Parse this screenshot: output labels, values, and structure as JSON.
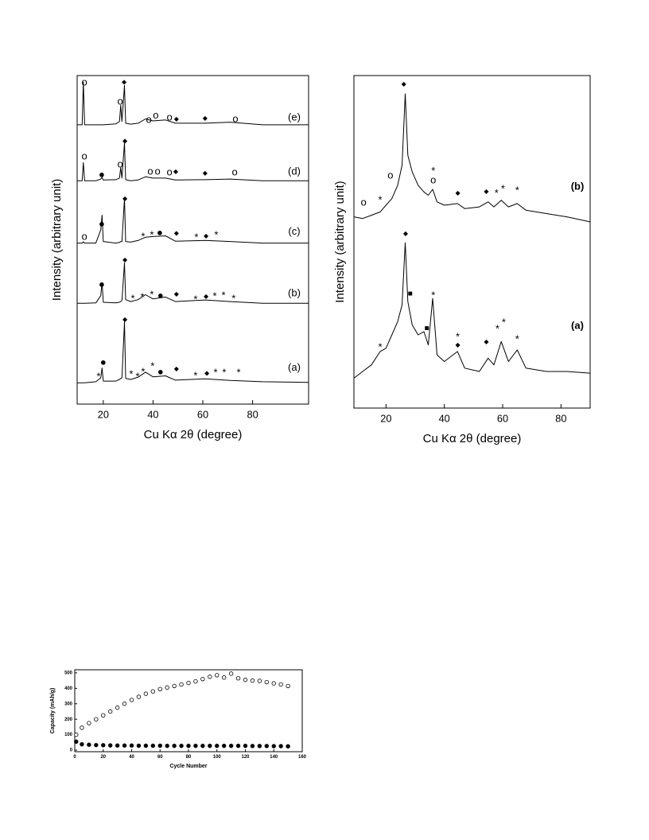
{
  "chart_data": [
    {
      "type": "line",
      "xlabel": "Cu Kα 2θ (degree)",
      "ylabel": "Intensity (arbitrary unit)",
      "xlim": [
        9.5,
        102.5
      ],
      "xticks": [
        20,
        40,
        60,
        80
      ],
      "ylim": [
        0,
        100
      ],
      "x": [
        9.5,
        11.5,
        12,
        12.5,
        17,
        19,
        19.5,
        20,
        25,
        26.5,
        27,
        27.5,
        28.5,
        29,
        31,
        34,
        37,
        40,
        45,
        49,
        61,
        71,
        84,
        102.5
      ],
      "series": [
        {
          "name": "(e)",
          "color": "#000000",
          "values": [
            85,
            85,
            98,
            85,
            85,
            85,
            85,
            85,
            85.3,
            86,
            91,
            86,
            97,
            85.5,
            85.2,
            85.5,
            86.8,
            86.2,
            86.5,
            85.5,
            85.5,
            85.8,
            85,
            85
          ]
        },
        {
          "name": "(d)",
          "color": "#000000",
          "values": [
            68,
            68,
            73.5,
            68,
            68,
            68.5,
            69,
            68.2,
            68.3,
            68.8,
            72,
            68.8,
            79.5,
            68.3,
            68,
            68.2,
            69.2,
            68.8,
            68.8,
            68.2,
            68.3,
            68.5,
            68,
            68
          ]
        },
        {
          "name": "(c)",
          "color": "#000000",
          "values": [
            49,
            49,
            49.4,
            49,
            49,
            53,
            57.5,
            49.5,
            49,
            49.2,
            49.5,
            49.5,
            62.5,
            49.5,
            49.3,
            49.8,
            50.8,
            51,
            51.2,
            49.6,
            49.8,
            49.5,
            49,
            49
          ]
        },
        {
          "name": "(b)",
          "color": "#000000",
          "values": [
            30.7,
            30.7,
            30.7,
            30.7,
            30.8,
            33,
            37,
            31,
            30.8,
            31,
            31.2,
            31.5,
            43,
            31.8,
            31.2,
            31.8,
            33.3,
            32,
            32.6,
            31.2,
            31.7,
            31.2,
            30.7,
            30.7
          ]
        },
        {
          "name": "(a)",
          "color": "#000000",
          "values": [
            6.5,
            6.5,
            6.5,
            6.5,
            6.8,
            8,
            11,
            7,
            7,
            7.5,
            7.8,
            8,
            25,
            7.8,
            7.5,
            8.2,
            9.7,
            8.3,
            8.6,
            7.3,
            7.7,
            7.2,
            6.8,
            6.6
          ]
        }
      ],
      "annotations": [
        {
          "text": "o",
          "x": 12.4,
          "y": 97.8
        },
        {
          "text": "o",
          "x": 26.8,
          "y": 92
        },
        {
          "text": "◆",
          "x": 28.4,
          "y": 98
        },
        {
          "text": "o",
          "x": 38.3,
          "y": 86.4
        },
        {
          "text": "o",
          "x": 41.1,
          "y": 87.7
        },
        {
          "text": "o",
          "x": 46.6,
          "y": 87.2
        },
        {
          "text": "◆",
          "x": 49.4,
          "y": 86.7
        },
        {
          "text": "◆",
          "x": 60.9,
          "y": 86.9
        },
        {
          "text": "o",
          "x": 73.1,
          "y": 86.7
        },
        {
          "text": "o",
          "x": 12.4,
          "y": 75.3
        },
        {
          "text": "●",
          "x": 19.4,
          "y": 69.7
        },
        {
          "text": "o",
          "x": 26.8,
          "y": 72.9
        },
        {
          "text": "◆",
          "x": 28.7,
          "y": 80.1
        },
        {
          "text": "o",
          "x": 38.9,
          "y": 70.7
        },
        {
          "text": "o",
          "x": 41.8,
          "y": 70.7
        },
        {
          "text": "o",
          "x": 46.6,
          "y": 70.5
        },
        {
          "text": "◆",
          "x": 49.1,
          "y": 70.7
        },
        {
          "text": "◆",
          "x": 60.9,
          "y": 70.2
        },
        {
          "text": "o",
          "x": 72.8,
          "y": 70.5
        },
        {
          "text": "o",
          "x": 12.4,
          "y": 50.8
        },
        {
          "text": "●",
          "x": 19.4,
          "y": 54.7
        },
        {
          "text": "◆",
          "x": 28.7,
          "y": 62.5
        },
        {
          "text": "*",
          "x": 36,
          "y": 50.8
        },
        {
          "text": "*",
          "x": 39.5,
          "y": 51.3
        },
        {
          "text": "●",
          "x": 42.7,
          "y": 52
        },
        {
          "text": "◆",
          "x": 49.4,
          "y": 52
        },
        {
          "text": "*",
          "x": 57.4,
          "y": 50.6
        },
        {
          "text": "◆",
          "x": 61.3,
          "y": 51.1
        },
        {
          "text": "*",
          "x": 65.4,
          "y": 51.3
        },
        {
          "text": "●",
          "x": 19.4,
          "y": 36.3
        },
        {
          "text": "◆",
          "x": 28.7,
          "y": 43.8
        },
        {
          "text": "*",
          "x": 31.9,
          "y": 32
        },
        {
          "text": "*",
          "x": 35.7,
          "y": 32.4
        },
        {
          "text": "*",
          "x": 39.5,
          "y": 33.2
        },
        {
          "text": "●",
          "x": 43,
          "y": 32.9
        },
        {
          "text": "◆",
          "x": 49.4,
          "y": 33.4
        },
        {
          "text": "*",
          "x": 57.1,
          "y": 31.7
        },
        {
          "text": "◆",
          "x": 61.3,
          "y": 32.7
        },
        {
          "text": "*",
          "x": 64.8,
          "y": 32.7
        },
        {
          "text": "*",
          "x": 68.3,
          "y": 32.9
        },
        {
          "text": "*",
          "x": 72.4,
          "y": 32
        },
        {
          "text": "*",
          "x": 18.1,
          "y": 8.2
        },
        {
          "text": "●",
          "x": 20,
          "y": 12.6
        },
        {
          "text": "◆",
          "x": 28.7,
          "y": 25.7
        },
        {
          "text": "*",
          "x": 31.2,
          "y": 9
        },
        {
          "text": "*",
          "x": 33.8,
          "y": 8.2
        },
        {
          "text": "*",
          "x": 36,
          "y": 9.7
        },
        {
          "text": "*",
          "x": 39.8,
          "y": 11.4
        },
        {
          "text": "●",
          "x": 43,
          "y": 9.7
        },
        {
          "text": "◆",
          "x": 49.4,
          "y": 10.7
        },
        {
          "text": "*",
          "x": 57.1,
          "y": 8.5
        },
        {
          "text": "◆",
          "x": 61.6,
          "y": 9.4
        },
        {
          "text": "*",
          "x": 65.1,
          "y": 9.4
        },
        {
          "text": "*",
          "x": 68.6,
          "y": 9.4
        },
        {
          "text": "*",
          "x": 74.4,
          "y": 9.4
        }
      ]
    },
    {
      "type": "line",
      "xlabel": "Cu Kα 2θ (degree)",
      "ylabel": "Intensity (arbitrary unit)",
      "xlim": [
        9,
        90
      ],
      "xticks": [
        20,
        40,
        60,
        80
      ],
      "ylim": [
        0,
        100
      ],
      "x": [
        9,
        12,
        15,
        18,
        20,
        22,
        24,
        25.5,
        26.6,
        27.5,
        29,
        31,
        33,
        34.5,
        36,
        37.5,
        40,
        44.5,
        47,
        52,
        55,
        57,
        59.5,
        62,
        65,
        68,
        75,
        82,
        90
      ],
      "series": [
        {
          "name": "(b)",
          "color": "#000000",
          "values": [
            57.5,
            57,
            58,
            59,
            61,
            63,
            67,
            73,
            94.5,
            76,
            71,
            67,
            65,
            64,
            65.8,
            62,
            61,
            61.5,
            60,
            60.5,
            62,
            60.5,
            62.5,
            60.5,
            61.5,
            59.5,
            58.5,
            57.5,
            56
          ]
        },
        {
          "name": "(a)",
          "color": "#000000",
          "values": [
            9,
            11,
            13,
            17,
            18,
            22,
            26,
            31,
            49.7,
            32,
            25,
            22,
            23,
            19,
            33,
            16,
            14,
            17,
            12,
            11,
            15,
            13,
            20,
            14,
            17.5,
            12,
            11,
            11,
            10.5
          ]
        }
      ],
      "annotations": [
        {
          "text": "o",
          "x": 12.3,
          "y": 61.7
        },
        {
          "text": "*",
          "x": 18,
          "y": 62.4
        },
        {
          "text": "o",
          "x": 21.5,
          "y": 69.9
        },
        {
          "text": "◆",
          "x": 26.1,
          "y": 97.4
        },
        {
          "text": "*",
          "x": 36.2,
          "y": 71.1
        },
        {
          "text": "o",
          "x": 36.2,
          "y": 68.4
        },
        {
          "text": "◆",
          "x": 44.6,
          "y": 64.6
        },
        {
          "text": "◆",
          "x": 54.4,
          "y": 65.1
        },
        {
          "text": "*",
          "x": 57.9,
          "y": 64.4
        },
        {
          "text": "*",
          "x": 60.1,
          "y": 65.8
        },
        {
          "text": "*",
          "x": 65,
          "y": 65.3
        },
        {
          "text": "◆",
          "x": 26.7,
          "y": 52.4
        },
        {
          "text": "■",
          "x": 28.3,
          "y": 34.4
        },
        {
          "text": "■",
          "x": 34,
          "y": 23.9
        },
        {
          "text": "*",
          "x": 36.2,
          "y": 33.7
        },
        {
          "text": "*",
          "x": 18,
          "y": 18.2
        },
        {
          "text": "*",
          "x": 44.6,
          "y": 21.3
        },
        {
          "text": "◆",
          "x": 44.6,
          "y": 18.9
        },
        {
          "text": "◆",
          "x": 54.4,
          "y": 19.9
        },
        {
          "text": "*",
          "x": 58.2,
          "y": 23.7
        },
        {
          "text": "*",
          "x": 60.4,
          "y": 25.6
        },
        {
          "text": "*",
          "x": 65,
          "y": 20.6
        }
      ]
    },
    {
      "type": "scatter",
      "xlabel": "Cycle Number",
      "ylabel": "Capacity (mAh/g)",
      "xlim": [
        0,
        160
      ],
      "xticks": [
        0,
        20,
        40,
        60,
        80,
        100,
        120,
        140,
        160
      ],
      "ylim": [
        -10,
        520
      ],
      "yticks": [
        0,
        100,
        200,
        300,
        400,
        500
      ],
      "x": [
        1,
        5,
        10,
        15,
        20,
        25,
        30,
        35,
        40,
        45,
        50,
        55,
        60,
        65,
        70,
        75,
        80,
        85,
        90,
        95,
        100,
        105,
        110,
        115,
        120,
        125,
        130,
        135,
        140,
        145,
        150
      ],
      "series": [
        {
          "color": "#000000",
          "marker": "open",
          "values": [
            100,
            145,
            175,
            200,
            225,
            250,
            275,
            300,
            325,
            345,
            365,
            380,
            395,
            405,
            415,
            425,
            435,
            445,
            460,
            475,
            485,
            470,
            495,
            465,
            455,
            450,
            448,
            440,
            432,
            425,
            415
          ]
        },
        {
          "color": "#000000",
          "marker": "filled",
          "values": [
            55,
            38,
            35,
            33,
            32,
            31,
            30,
            30,
            30,
            29,
            29,
            29,
            29,
            28,
            28,
            28,
            28,
            28,
            28,
            28,
            28,
            28,
            28,
            28,
            28,
            27,
            27,
            27,
            26,
            26,
            25
          ]
        }
      ]
    }
  ]
}
